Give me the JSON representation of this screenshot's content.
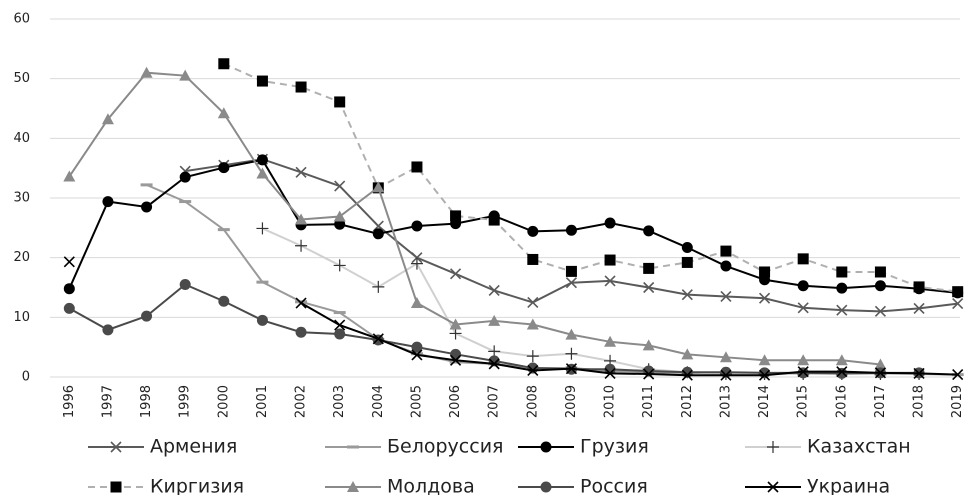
{
  "chart_data": {
    "type": "line",
    "categories": [
      "1996",
      "1997",
      "1998",
      "1999",
      "2000",
      "2001",
      "2002",
      "2003",
      "2004",
      "2005",
      "2006",
      "2007",
      "2008",
      "2009",
      "2010",
      "2011",
      "2012",
      "2013",
      "2014",
      "2015",
      "2016",
      "2017",
      "2018",
      "2019"
    ],
    "ylim": [
      0,
      60
    ],
    "yticks": [
      0,
      10,
      20,
      30,
      40,
      50,
      60
    ],
    "grid": true,
    "legend": "bottom",
    "series": [
      {
        "name": "Армения",
        "color": "#5a5a5a",
        "marker": "x",
        "values": [
          null,
          null,
          null,
          34.5,
          35.5,
          36.5,
          34.3,
          32,
          25.3,
          20,
          17.3,
          14.5,
          12.5,
          15.8,
          16.1,
          15,
          13.8,
          13.5,
          13.2,
          11.6,
          11.2,
          11,
          11.5,
          12.3
        ]
      },
      {
        "name": "Белоруссия",
        "color": "#9a9a9a",
        "marker": "dash",
        "values": [
          null,
          null,
          32.2,
          29.4,
          24.7,
          15.9,
          12.6,
          10.8,
          6.3,
          3.9,
          2.5,
          2.2,
          1.5,
          1.5,
          1.0,
          0.8,
          0.7,
          0.6,
          0.6,
          0.5,
          0.5,
          0.5,
          0.5,
          0.4
        ]
      },
      {
        "name": "Грузия",
        "color": "#000000",
        "marker": "circle",
        "values": [
          14.8,
          29.4,
          28.5,
          33.5,
          35.1,
          36.4,
          25.5,
          25.6,
          24,
          25.3,
          25.7,
          27,
          24.4,
          24.6,
          25.8,
          24.5,
          21.7,
          18.6,
          16.3,
          15.3,
          14.9,
          15.3,
          14.8,
          14.1
        ]
      },
      {
        "name": "Казахстан",
        "color": "#d0d0d0",
        "marker": "plus",
        "values": [
          null,
          null,
          null,
          null,
          null,
          24.9,
          22,
          18.7,
          15.1,
          19,
          7.3,
          4.3,
          3.5,
          3.9,
          2.7,
          1.3,
          0.8,
          0.5,
          0.5,
          0.5,
          0.5,
          0.5,
          0.5,
          null
        ]
      },
      {
        "name": "Киргизия",
        "color": "#b0b0b0",
        "marker": "square",
        "dashed": true,
        "marker_color": "#000000",
        "values": [
          null,
          null,
          null,
          null,
          52.5,
          49.6,
          48.6,
          46.1,
          31.7,
          35.2,
          27.0,
          26.3,
          19.7,
          17.7,
          19.6,
          18.2,
          19.2,
          21.1,
          17.6,
          19.8,
          17.6,
          17.6,
          15.1,
          14.3
        ]
      },
      {
        "name": "Молдова",
        "color": "#8a8a8a",
        "marker": "triangle",
        "values": [
          33.6,
          43.2,
          51,
          50.5,
          44.2,
          34.1,
          26.4,
          26.9,
          31.8,
          12.4,
          8.8,
          9.4,
          8.8,
          7.1,
          5.9,
          5.3,
          3.8,
          3.3,
          2.8,
          2.8,
          2.8,
          2.1,
          null,
          null
        ]
      },
      {
        "name": "Россия",
        "color": "#4a4a4a",
        "marker": "circle",
        "values": [
          11.5,
          7.9,
          10.2,
          15.5,
          12.7,
          9.5,
          7.5,
          7.2,
          6.2,
          5.0,
          3.8,
          2.7,
          1.5,
          1.3,
          1.3,
          1.0,
          0.8,
          0.8,
          0.7,
          0.7,
          0.6,
          0.7,
          0.7,
          null
        ]
      },
      {
        "name": "Украина",
        "color": "#000000",
        "marker": "x",
        "values": [
          19.3,
          null,
          null,
          null,
          null,
          null,
          12.4,
          8.7,
          6.4,
          3.7,
          2.8,
          2.2,
          1.1,
          1.4,
          0.6,
          0.5,
          0.3,
          0.3,
          0.3,
          0.9,
          0.9,
          0.7,
          0.6,
          0.4
        ]
      }
    ]
  }
}
